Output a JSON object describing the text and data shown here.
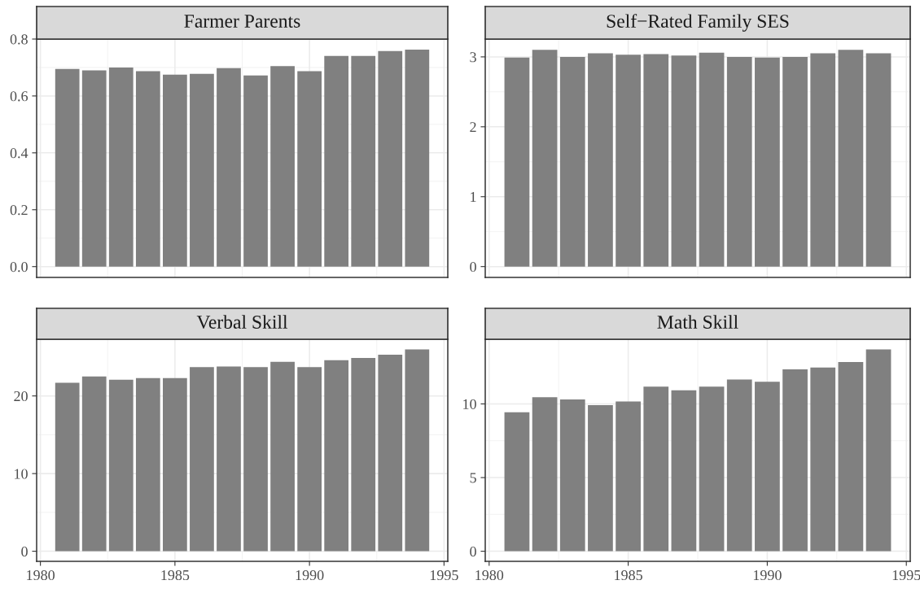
{
  "chart_data": [
    {
      "type": "bar",
      "title": "Farmer Parents",
      "x": [
        1981,
        1982,
        1983,
        1984,
        1985,
        1986,
        1987,
        1988,
        1989,
        1990,
        1991,
        1992,
        1993,
        1994
      ],
      "values": [
        0.695,
        0.69,
        0.7,
        0.687,
        0.675,
        0.678,
        0.698,
        0.672,
        0.705,
        0.687,
        0.741,
        0.741,
        0.758,
        0.763
      ],
      "color": "#808080",
      "xlim": [
        1979.86,
        1995.14
      ],
      "xticks": [
        1980,
        1985,
        1990,
        1995
      ],
      "ylim": [
        -0.038,
        0.8
      ],
      "yticks": [
        {
          "value": 0,
          "label": "0.0"
        },
        0.2,
        0.4,
        0.6,
        0.8
      ],
      "grid": true,
      "tick_labels": "y"
    },
    {
      "type": "bar",
      "title": "Self−Rated Family SES",
      "x": [
        1981,
        1982,
        1983,
        1984,
        1985,
        1986,
        1987,
        1988,
        1989,
        1990,
        1991,
        1992,
        1993,
        1994
      ],
      "values": [
        2.99,
        3.1,
        3.0,
        3.05,
        3.03,
        3.04,
        3.02,
        3.06,
        3.0,
        2.99,
        3.0,
        3.05,
        3.1,
        3.05
      ],
      "color": "#808080",
      "xlim": [
        1979.86,
        1995.14
      ],
      "xticks": [
        1980,
        1985,
        1990,
        1995
      ],
      "ylim": [
        -0.155,
        3.255
      ],
      "yticks": [
        0,
        1,
        2,
        3
      ],
      "grid": true,
      "tick_labels": "y"
    },
    {
      "type": "bar",
      "title": "Verbal Skill",
      "x": [
        1981,
        1982,
        1983,
        1984,
        1985,
        1986,
        1987,
        1988,
        1989,
        1990,
        1991,
        1992,
        1993,
        1994
      ],
      "values": [
        21.7,
        22.5,
        22.1,
        22.3,
        22.3,
        23.7,
        23.8,
        23.7,
        24.4,
        23.7,
        24.6,
        24.9,
        25.3,
        26.0
      ],
      "color": "#808080",
      "xlim": [
        1979.86,
        1995.14
      ],
      "xticks": [
        1980,
        1985,
        1990,
        1995
      ],
      "ylim": [
        -1.3,
        27.3
      ],
      "yticks": [
        0,
        10,
        20
      ],
      "grid": true
    },
    {
      "type": "bar",
      "title": "Math Skill",
      "x": [
        1981,
        1982,
        1983,
        1984,
        1985,
        1986,
        1987,
        1988,
        1989,
        1990,
        1991,
        1992,
        1993,
        1994
      ],
      "values": [
        9.43,
        10.45,
        10.3,
        9.92,
        10.17,
        11.17,
        10.92,
        11.17,
        11.65,
        11.5,
        12.35,
        12.47,
        12.85,
        13.7
      ],
      "color": "#808080",
      "xlim": [
        1979.86,
        1995.14
      ],
      "xticks": [
        1980,
        1985,
        1990,
        1995
      ],
      "ylim": [
        -0.685,
        14.39
      ],
      "yticks": [
        0,
        5,
        10
      ],
      "grid": true
    }
  ]
}
